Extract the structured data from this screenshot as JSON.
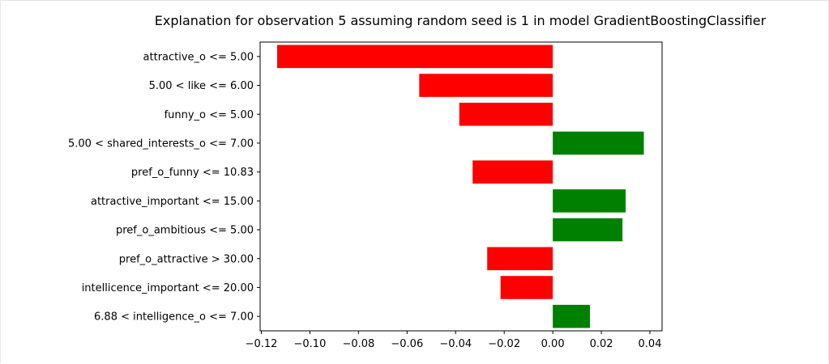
{
  "chart_data": {
    "type": "bar",
    "orientation": "horizontal",
    "title": "Explanation for observation 5 assuming random seed is 1 in model GradientBoostingClassifier",
    "xlabel": "",
    "ylabel": "",
    "categories": [
      "attractive_o <= 5.00",
      "5.00 < like <= 6.00",
      "funny_o <= 5.00",
      "5.00 < shared_interests_o <= 7.00",
      "pref_o_funny <= 10.83",
      "attractive_important <= 15.00",
      "pref_o_ambitious <= 5.00",
      "pref_o_attractive > 30.00",
      "intellicence_important <= 20.00",
      "6.88 < intelligence_o <= 7.00"
    ],
    "values": [
      -0.1135,
      -0.055,
      -0.0385,
      0.0375,
      -0.033,
      0.03,
      0.0287,
      -0.027,
      -0.0215,
      0.0153
    ],
    "xlim": [
      -0.1205,
      0.045
    ],
    "xticks": [
      -0.12,
      -0.1,
      -0.08,
      -0.06,
      -0.04,
      -0.02,
      0.0,
      0.02,
      0.04
    ],
    "xtick_labels": [
      "−0.12",
      "−0.10",
      "−0.08",
      "−0.06",
      "−0.04",
      "−0.02",
      "0.00",
      "0.02",
      "0.04"
    ],
    "grid": false,
    "colors": {
      "positive": "#008000",
      "negative": "#ff0000"
    }
  }
}
